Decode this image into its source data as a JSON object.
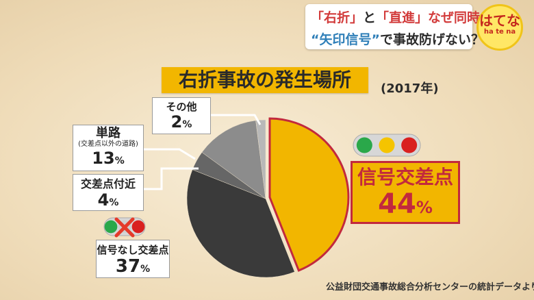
{
  "header": {
    "line1_q1": "「右折」",
    "line1_and": "と",
    "line1_q2": "「直進」",
    "line1_rest": "なぜ同時",
    "line2_q": "“矢印信号”",
    "line2_rest": "で事故防げない？"
  },
  "badge": {
    "main": "はてな",
    "sub": "ha te na"
  },
  "chart_data": {
    "type": "pie",
    "title": "右折事故の発生場所",
    "subtitle": "(2017年)",
    "slices": [
      {
        "label": "信号交差点",
        "value": 44,
        "display": "44",
        "unit": "%",
        "color": "#f2b600"
      },
      {
        "label": "信号なし交差点",
        "value": 37,
        "display": "37",
        "unit": "%",
        "color": "#3a3a3a"
      },
      {
        "label": "交差点付近",
        "value": 4,
        "display": "4",
        "unit": "%",
        "color": "#666666"
      },
      {
        "label": "単路",
        "sublabel": "(交差点以外の道路)",
        "value": 13,
        "display": "13",
        "unit": "%",
        "color": "#8c8c8c"
      },
      {
        "label": "その他",
        "value": 2,
        "display": "2",
        "unit": "%",
        "color": "#b8b8b8"
      }
    ],
    "source": "公益財団交通事故総合分析センターの統計データより"
  },
  "colors": {
    "accent": "#f2b600",
    "highlight_border": "#c2293d",
    "light_green": "#2aa84a",
    "light_yellow": "#f5c400",
    "light_red": "#d92020"
  }
}
